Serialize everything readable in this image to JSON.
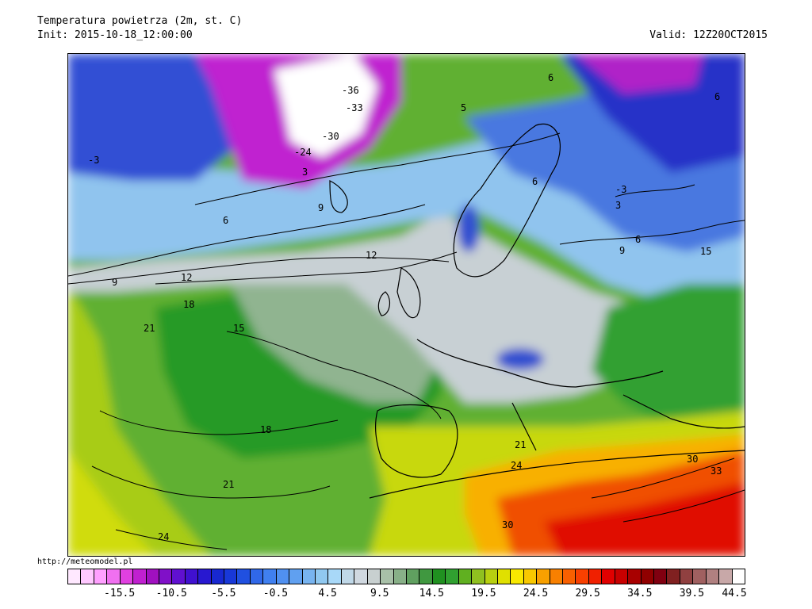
{
  "header": {
    "title": "Temperatura powietrza (2m, st. C)",
    "init": "Init: 2015-10-18_12:00:00",
    "valid": "Valid: 12Z20OCT2015"
  },
  "source_url": "http://meteomodel.pl",
  "map": {
    "contour_labels": [
      "-36",
      "-33",
      "-30",
      "-24",
      "-3",
      "-3",
      "3",
      "3",
      "5",
      "6",
      "6",
      "6",
      "6",
      "6",
      "9",
      "9",
      "9",
      "12",
      "12",
      "15",
      "15",
      "18",
      "18",
      "21",
      "21",
      "21",
      "24",
      "24",
      "30",
      "30",
      "33"
    ]
  },
  "colorbar": {
    "tick_labels": [
      "-15.5",
      "-10.5",
      "-5.5",
      "-0.5",
      "4.5",
      "9.5",
      "14.5",
      "19.5",
      "24.5",
      "29.5",
      "34.5",
      "39.5",
      "44.5"
    ],
    "colors": [
      "#ffe8ff",
      "#ffc8ff",
      "#ffa0ff",
      "#f070f0",
      "#e040e0",
      "#c020d0",
      "#a010c0",
      "#8010c8",
      "#6010d0",
      "#4010d0",
      "#2818d0",
      "#1828d0",
      "#1838d8",
      "#2050e0",
      "#3068e8",
      "#4080f0",
      "#5090f0",
      "#60a0f0",
      "#78b4f0",
      "#90c8f0",
      "#a8d8f8",
      "#c0d8e8",
      "#d0d8e0",
      "#c8d0d0",
      "#a8c0a8",
      "#88b088",
      "#60a060",
      "#409840",
      "#209020",
      "#30a030",
      "#60b020",
      "#90c020",
      "#b8d010",
      "#e0e000",
      "#f8e800",
      "#f8c800",
      "#f8a000",
      "#f88000",
      "#f86000",
      "#f84000",
      "#f02000",
      "#e00000",
      "#c80000",
      "#a80000",
      "#900000",
      "#800010",
      "#802020",
      "#904040",
      "#a06060",
      "#b08080",
      "#c8a8a8",
      "#ffffff"
    ]
  }
}
